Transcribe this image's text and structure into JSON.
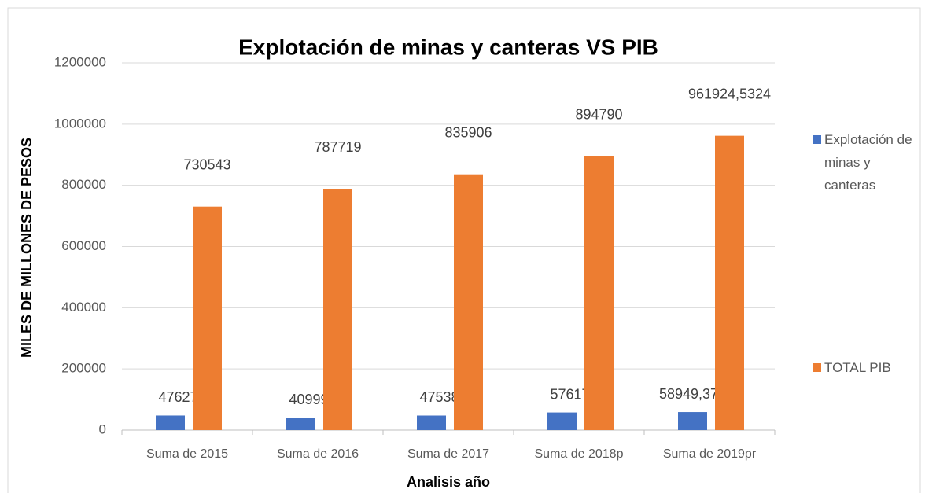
{
  "chart_data": {
    "type": "bar",
    "title": "Explotación de minas y canteras VS PIB",
    "x_label": "Analisis año",
    "y_label": "MILES DE MILLONES DE PESOS",
    "categories": [
      "Suma de 2015",
      "Suma de 2016",
      "Suma de 2017",
      "Suma de 2018p",
      "Suma de 2019pr"
    ],
    "series": [
      {
        "name": "Explotación de minas y canteras",
        "color": "#4472c4",
        "values": [
          47627,
          40999,
          47538,
          57617,
          58949.37588
        ],
        "value_labels": [
          "47627",
          "40999",
          "47538",
          "57617",
          "58949,37588"
        ]
      },
      {
        "name": "TOTAL PIB",
        "color": "#ed7d31",
        "values": [
          730543,
          787719,
          835906,
          894790,
          961924.5324
        ],
        "value_labels": [
          "730543",
          "787719",
          "835906",
          "894790",
          "961924,5324"
        ]
      }
    ],
    "ylim": [
      0,
      1200000
    ],
    "yticks": [
      0,
      200000,
      400000,
      600000,
      800000,
      1000000,
      1200000
    ],
    "grid": true,
    "legend": "right"
  }
}
